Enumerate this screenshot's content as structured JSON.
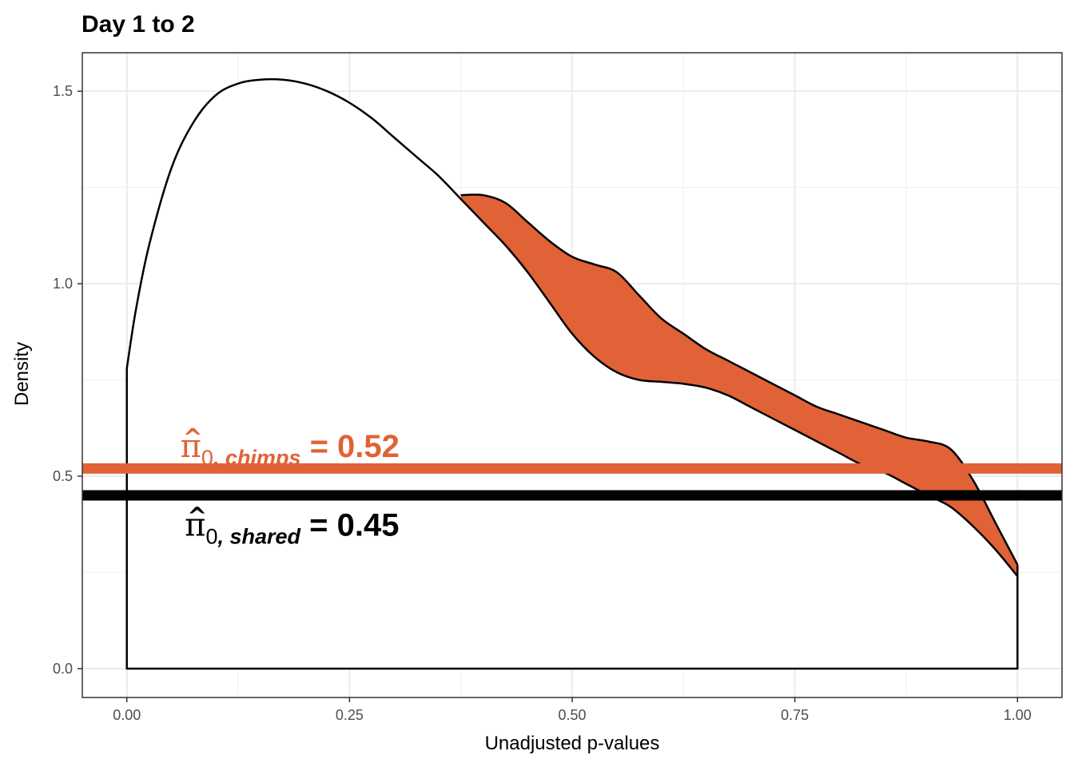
{
  "chart_data": {
    "type": "area",
    "title": "Day 1 to 2",
    "xlabel": "Unadjusted p-values",
    "ylabel": "Density",
    "xlim": [
      -0.05,
      1.05
    ],
    "ylim": [
      -0.075,
      1.6
    ],
    "x_ticks": [
      0,
      0.25,
      0.5,
      0.75,
      1
    ],
    "x_tick_labels": [
      "0.00",
      "0.25",
      "0.50",
      "0.75",
      "1.00"
    ],
    "y_ticks": [
      0,
      0.5,
      1,
      1.5
    ],
    "y_tick_labels": [
      "0.0",
      "0.5",
      "1.0",
      "1.5"
    ],
    "grid": true,
    "density_shared": {
      "x": [
        0,
        0.01,
        0.025,
        0.05,
        0.075,
        0.1,
        0.125,
        0.15,
        0.175,
        0.2,
        0.225,
        0.25,
        0.275,
        0.3,
        0.325,
        0.35,
        0.375,
        0.4,
        0.425,
        0.45,
        0.475,
        0.5,
        0.525,
        0.55,
        0.575,
        0.6,
        0.625,
        0.65,
        0.675,
        0.7,
        0.725,
        0.75,
        0.775,
        0.8,
        0.825,
        0.85,
        0.875,
        0.9,
        0.925,
        0.95,
        0.975,
        1
      ],
      "y": [
        0.78,
        0.93,
        1.1,
        1.3,
        1.42,
        1.49,
        1.52,
        1.53,
        1.53,
        1.52,
        1.5,
        1.47,
        1.43,
        1.38,
        1.33,
        1.28,
        1.22,
        1.16,
        1.1,
        1.03,
        0.95,
        0.87,
        0.81,
        0.77,
        0.75,
        0.745,
        0.74,
        0.73,
        0.71,
        0.68,
        0.65,
        0.62,
        0.59,
        0.56,
        0.53,
        0.51,
        0.48,
        0.45,
        0.42,
        0.37,
        0.31,
        0.24
      ]
    },
    "density_chimps": {
      "x": [
        0.375,
        0.4,
        0.425,
        0.45,
        0.475,
        0.5,
        0.525,
        0.55,
        0.575,
        0.6,
        0.625,
        0.65,
        0.675,
        0.7,
        0.725,
        0.75,
        0.775,
        0.8,
        0.825,
        0.85,
        0.875,
        0.9,
        0.925,
        0.95,
        0.975,
        1
      ],
      "y": [
        1.23,
        1.23,
        1.21,
        1.16,
        1.11,
        1.07,
        1.05,
        1.03,
        0.97,
        0.91,
        0.87,
        0.83,
        0.8,
        0.77,
        0.74,
        0.71,
        0.68,
        0.66,
        0.64,
        0.62,
        0.6,
        0.59,
        0.57,
        0.49,
        0.38,
        0.27
      ]
    },
    "hlines": [
      {
        "name": "chimps",
        "y": 0.52,
        "color": "#E06236"
      },
      {
        "name": "shared",
        "y": 0.45,
        "color": "#000000"
      }
    ],
    "annotations": [
      {
        "pi": "π",
        "hat": "^",
        "zero": "0",
        "subscript": ", chimps",
        "equals": " = ",
        "value": "0.52",
        "color": "#E06236",
        "x": 0.06,
        "y": 0.55
      },
      {
        "pi": "π",
        "hat": "^",
        "zero": "0",
        "subscript": ", shared",
        "equals": " = ",
        "value": "0.45",
        "color": "#000000",
        "x": 0.065,
        "y": 0.345
      }
    ],
    "fill_color": "#E06236"
  }
}
